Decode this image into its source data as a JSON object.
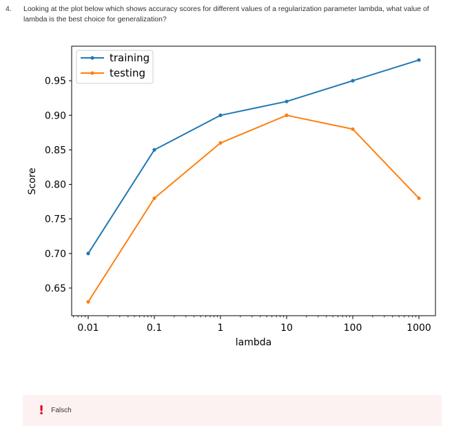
{
  "question": {
    "number": "4.",
    "text": "Looking at the plot below which shows accuracy scores for different values of a regularization parameter lambda, what value of lambda is the best choice for generalization?"
  },
  "chart_data": {
    "type": "line",
    "xscale": "log",
    "x": [
      0.01,
      0.1,
      1,
      10,
      100,
      1000
    ],
    "xtick_labels": [
      "0.01",
      "0.1",
      "1",
      "10",
      "100",
      "1000"
    ],
    "ytick_values": [
      0.65,
      0.7,
      0.75,
      0.8,
      0.85,
      0.9,
      0.95
    ],
    "ytick_labels": [
      "0.65",
      "0.70",
      "0.75",
      "0.80",
      "0.85",
      "0.90",
      "0.95"
    ],
    "ylim": [
      0.61,
      1.0
    ],
    "xlabel": "lambda",
    "ylabel": "Score",
    "title": "",
    "grid": false,
    "legend_position": "top-left",
    "series": [
      {
        "name": "training",
        "color": "#1f77b4",
        "values": [
          0.7,
          0.85,
          0.9,
          0.92,
          0.95,
          0.98
        ]
      },
      {
        "name": "testing",
        "color": "#ff7f0e",
        "values": [
          0.63,
          0.78,
          0.86,
          0.9,
          0.88,
          0.78
        ]
      }
    ]
  },
  "feedback": {
    "icon": "exclamation-icon",
    "mark": "!",
    "label": "Falsch",
    "accent_color": "#e2001a",
    "background_color": "#fdf2f2"
  }
}
